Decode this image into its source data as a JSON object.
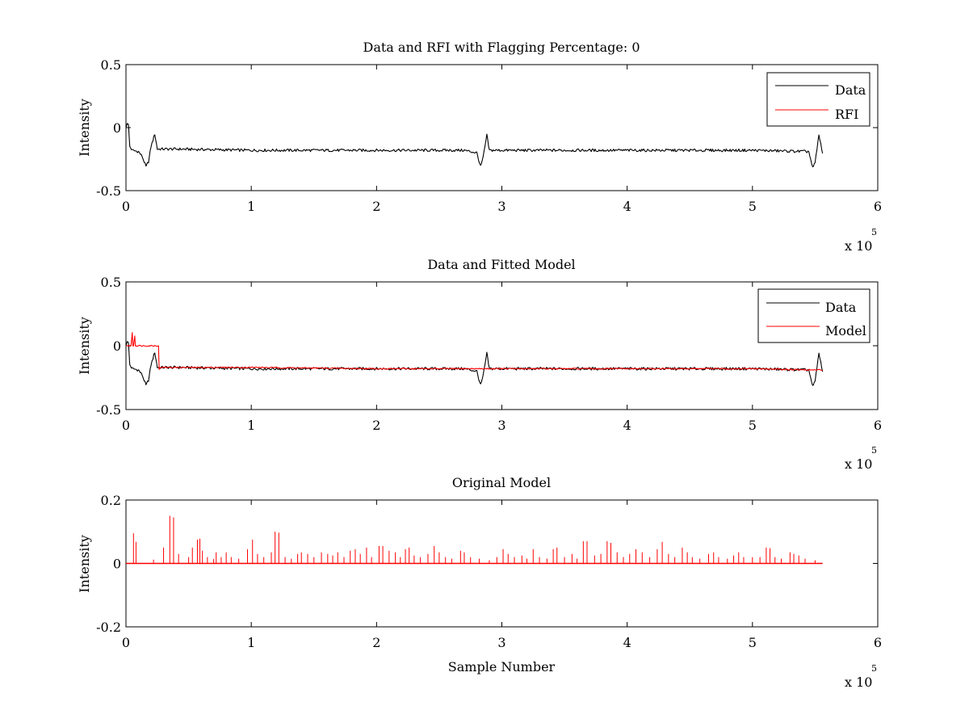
{
  "chart_data": [
    {
      "type": "line",
      "title": "Data and RFI with Flagging Percentage: 0",
      "xlabel": "",
      "ylabel": "Intensity",
      "xlim": [
        0,
        6
      ],
      "ylim": [
        -0.5,
        0.5
      ],
      "xticks": [
        "0",
        "1",
        "2",
        "3",
        "4",
        "5",
        "6"
      ],
      "yticks": [
        "0.5",
        "0",
        "-0.5"
      ],
      "x_multiplier": {
        "base": "x 10",
        "power": "5"
      },
      "grid": false,
      "legend": {
        "position": "top-right",
        "entries": [
          "Data",
          "RFI"
        ]
      },
      "series": [
        {
          "name": "Data",
          "color": "#000000",
          "x": [
            0,
            0.01,
            0.02,
            0.03,
            0.05,
            0.1,
            0.13,
            0.16,
            0.18,
            0.2,
            0.23,
            0.25,
            0.4,
            1,
            2,
            2.7,
            2.8,
            2.83,
            2.85,
            2.88,
            2.9,
            3,
            4,
            5,
            5.45,
            5.48,
            5.5,
            5.53,
            5.56
          ],
          "y": [
            0.0,
            0.04,
            0.02,
            -0.15,
            -0.18,
            -0.19,
            -0.23,
            -0.31,
            -0.27,
            -0.15,
            -0.05,
            -0.17,
            -0.17,
            -0.18,
            -0.18,
            -0.18,
            -0.2,
            -0.31,
            -0.24,
            -0.06,
            -0.18,
            -0.18,
            -0.18,
            -0.18,
            -0.19,
            -0.32,
            -0.28,
            -0.06,
            -0.2
          ]
        },
        {
          "name": "RFI",
          "color": "#ff0000",
          "x": [],
          "y": []
        }
      ]
    },
    {
      "type": "line",
      "title": "Data and Fitted Model",
      "xlabel": "",
      "ylabel": "Intensity",
      "xlim": [
        0,
        6
      ],
      "ylim": [
        -0.5,
        0.5
      ],
      "xticks": [
        "0",
        "1",
        "2",
        "3",
        "4",
        "5",
        "6"
      ],
      "yticks": [
        "0.5",
        "0",
        "-0.5"
      ],
      "x_multiplier": {
        "base": "x 10",
        "power": "5"
      },
      "grid": false,
      "legend": {
        "position": "top-right",
        "entries": [
          "Data",
          "Model"
        ]
      },
      "series": [
        {
          "name": "Data",
          "color": "#000000",
          "x": [
            0,
            0.01,
            0.02,
            0.03,
            0.05,
            0.1,
            0.13,
            0.16,
            0.18,
            0.2,
            0.23,
            0.25,
            0.4,
            1,
            2,
            2.7,
            2.8,
            2.83,
            2.85,
            2.88,
            2.9,
            3,
            4,
            5,
            5.45,
            5.48,
            5.5,
            5.53,
            5.56
          ],
          "y": [
            0.0,
            0.04,
            0.02,
            -0.15,
            -0.18,
            -0.19,
            -0.23,
            -0.31,
            -0.27,
            -0.15,
            -0.05,
            -0.17,
            -0.17,
            -0.18,
            -0.18,
            -0.18,
            -0.2,
            -0.31,
            -0.24,
            -0.06,
            -0.18,
            -0.18,
            -0.18,
            -0.18,
            -0.19,
            -0.32,
            -0.28,
            -0.06,
            -0.2
          ]
        },
        {
          "name": "Model",
          "color": "#ff0000",
          "x": [
            0,
            0.04,
            0.05,
            0.055,
            0.06,
            0.07,
            0.075,
            0.08,
            0.1,
            0.26,
            0.265,
            0.27,
            1,
            2,
            3,
            4,
            5,
            5.5,
            5.56
          ],
          "y": [
            0.0,
            0.0,
            0.1,
            0.0,
            0.0,
            0.08,
            0.0,
            0.0,
            0.0,
            0.0,
            -0.19,
            -0.17,
            -0.17,
            -0.18,
            -0.18,
            -0.18,
            -0.18,
            -0.19,
            -0.19
          ]
        }
      ]
    },
    {
      "type": "line",
      "title": "Original Model",
      "xlabel": "Sample Number",
      "ylabel": "Intensity",
      "xlim": [
        0,
        6
      ],
      "ylim": [
        -0.2,
        0.2
      ],
      "xticks": [
        "0",
        "1",
        "2",
        "3",
        "4",
        "5",
        "6"
      ],
      "yticks": [
        "0.2",
        "0",
        "-0.2"
      ],
      "x_multiplier": {
        "base": "x 10",
        "power": "5"
      },
      "grid": false,
      "series": [
        {
          "name": "",
          "color": "#ff0000",
          "baseline": 0,
          "xmax": 5.56,
          "spikes": [
            [
              0.06,
              0.095
            ],
            [
              0.08,
              0.068
            ],
            [
              0.22,
              0.012
            ],
            [
              0.3,
              0.05
            ],
            [
              0.35,
              0.15
            ],
            [
              0.38,
              0.145
            ],
            [
              0.42,
              0.03
            ],
            [
              0.5,
              0.02
            ],
            [
              0.53,
              0.05
            ],
            [
              0.57,
              0.075
            ],
            [
              0.59,
              0.078
            ],
            [
              0.61,
              0.04
            ],
            [
              0.65,
              0.02
            ],
            [
              0.7,
              0.014
            ],
            [
              0.72,
              0.035
            ],
            [
              0.76,
              0.02
            ],
            [
              0.8,
              0.035
            ],
            [
              0.84,
              0.02
            ],
            [
              0.9,
              0.015
            ],
            [
              0.97,
              0.045
            ],
            [
              1.01,
              0.075
            ],
            [
              1.05,
              0.03
            ],
            [
              1.1,
              0.02
            ],
            [
              1.16,
              0.035
            ],
            [
              1.19,
              0.1
            ],
            [
              1.22,
              0.097
            ],
            [
              1.27,
              0.02
            ],
            [
              1.32,
              0.015
            ],
            [
              1.37,
              0.03
            ],
            [
              1.4,
              0.035
            ],
            [
              1.45,
              0.03
            ],
            [
              1.5,
              0.02
            ],
            [
              1.56,
              0.035
            ],
            [
              1.61,
              0.03
            ],
            [
              1.65,
              0.025
            ],
            [
              1.69,
              0.035
            ],
            [
              1.74,
              0.02
            ],
            [
              1.79,
              0.04
            ],
            [
              1.83,
              0.045
            ],
            [
              1.87,
              0.03
            ],
            [
              1.92,
              0.05
            ],
            [
              1.96,
              0.02
            ],
            [
              2.02,
              0.055
            ],
            [
              2.05,
              0.055
            ],
            [
              2.1,
              0.04
            ],
            [
              2.15,
              0.035
            ],
            [
              2.19,
              0.02
            ],
            [
              2.23,
              0.045
            ],
            [
              2.26,
              0.05
            ],
            [
              2.3,
              0.025
            ],
            [
              2.35,
              0.02
            ],
            [
              2.41,
              0.03
            ],
            [
              2.46,
              0.055
            ],
            [
              2.5,
              0.035
            ],
            [
              2.55,
              0.02
            ],
            [
              2.6,
              0.015
            ],
            [
              2.67,
              0.04
            ],
            [
              2.7,
              0.035
            ],
            [
              2.75,
              0.02
            ],
            [
              2.82,
              0.015
            ],
            [
              2.9,
              0.01
            ],
            [
              2.96,
              0.02
            ],
            [
              3.01,
              0.045
            ],
            [
              3.05,
              0.03
            ],
            [
              3.1,
              0.02
            ],
            [
              3.16,
              0.025
            ],
            [
              3.2,
              0.015
            ],
            [
              3.25,
              0.045
            ],
            [
              3.3,
              0.02
            ],
            [
              3.36,
              0.015
            ],
            [
              3.41,
              0.045
            ],
            [
              3.44,
              0.05
            ],
            [
              3.5,
              0.02
            ],
            [
              3.56,
              0.03
            ],
            [
              3.6,
              0.015
            ],
            [
              3.65,
              0.07
            ],
            [
              3.68,
              0.07
            ],
            [
              3.74,
              0.025
            ],
            [
              3.79,
              0.03
            ],
            [
              3.84,
              0.07
            ],
            [
              3.87,
              0.065
            ],
            [
              3.92,
              0.035
            ],
            [
              3.97,
              0.02
            ],
            [
              4.02,
              0.03
            ],
            [
              4.07,
              0.045
            ],
            [
              4.12,
              0.035
            ],
            [
              4.18,
              0.02
            ],
            [
              4.24,
              0.045
            ],
            [
              4.28,
              0.068
            ],
            [
              4.33,
              0.03
            ],
            [
              4.38,
              0.02
            ],
            [
              4.44,
              0.05
            ],
            [
              4.48,
              0.035
            ],
            [
              4.52,
              0.02
            ],
            [
              4.58,
              0.015
            ],
            [
              4.65,
              0.03
            ],
            [
              4.69,
              0.035
            ],
            [
              4.73,
              0.02
            ],
            [
              4.8,
              0.015
            ],
            [
              4.85,
              0.025
            ],
            [
              4.89,
              0.035
            ],
            [
              4.93,
              0.02
            ],
            [
              5.0,
              0.02
            ],
            [
              5.06,
              0.02
            ],
            [
              5.11,
              0.05
            ],
            [
              5.14,
              0.048
            ],
            [
              5.18,
              0.02
            ],
            [
              5.23,
              0.015
            ],
            [
              5.3,
              0.035
            ],
            [
              5.33,
              0.03
            ],
            [
              5.37,
              0.025
            ],
            [
              5.42,
              0.015
            ],
            [
              5.5,
              0.01
            ]
          ]
        }
      ]
    }
  ]
}
